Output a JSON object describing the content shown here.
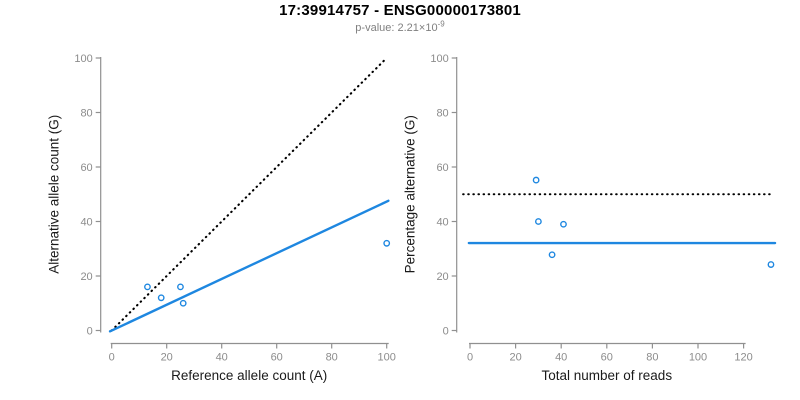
{
  "header": {
    "title": "17:39914757 - ENSG00000173801",
    "p_value_label": "p-value: 2.21×10",
    "p_value_exponent": "-9"
  },
  "colors": {
    "accent_blue": "#1E87E0",
    "dotted_line_black": "#000000",
    "axis_gray": "#909090",
    "tick_label_gray": "#8c8c8c",
    "axis_label_black": "#1a1a1a",
    "subtitle_gray": "#7f7f7f",
    "background": "#ffffff"
  },
  "chart_data": [
    {
      "type": "scatter",
      "title": "",
      "xlabel": "Reference allele count (A)",
      "ylabel": "Alternative allele count (G)",
      "xlim": [
        0,
        100
      ],
      "ylim": [
        0,
        100
      ],
      "xticks": [
        0,
        20,
        40,
        60,
        80,
        100
      ],
      "yticks": [
        0,
        20,
        40,
        60,
        80,
        100
      ],
      "grid": false,
      "legend": "none",
      "marker": "open-circle",
      "points": [
        [
          13,
          16
        ],
        [
          18,
          12
        ],
        [
          25,
          16
        ],
        [
          26,
          10
        ],
        [
          100,
          32
        ]
      ],
      "lines": [
        {
          "name": "identity-line",
          "style": "dotted",
          "color": "#000000",
          "x1": 0,
          "y1": 0,
          "x2": 100,
          "y2": 100
        },
        {
          "name": "fit-line",
          "style": "solid",
          "color": "#1E87E0",
          "x1": -0.6,
          "y1": -0.3,
          "x2": 100.6,
          "y2": 47.6
        }
      ]
    },
    {
      "type": "scatter",
      "title": "",
      "xlabel": "Total number of reads",
      "ylabel": "Percentage alternative (G)",
      "xlim": [
        0,
        134
      ],
      "ylim": [
        0,
        100
      ],
      "xticks": [
        0,
        20,
        40,
        60,
        80,
        100,
        120
      ],
      "yticks": [
        0,
        20,
        40,
        60,
        80,
        100
      ],
      "grid": false,
      "legend": "none",
      "marker": "open-circle",
      "points": [
        [
          29,
          55.2
        ],
        [
          30,
          40
        ],
        [
          41,
          39
        ],
        [
          36,
          27.8
        ],
        [
          132,
          24.2
        ]
      ],
      "lines": [
        {
          "name": "fifty-percent-line",
          "style": "dotted",
          "color": "#000000",
          "x1": -3,
          "y1": 50,
          "x2": 131.6,
          "y2": 50
        },
        {
          "name": "mean-percentage-line",
          "style": "solid",
          "color": "#1E87E0",
          "x1": -0.5,
          "y1": 32.1,
          "x2": 133.8,
          "y2": 32.1
        }
      ]
    }
  ]
}
